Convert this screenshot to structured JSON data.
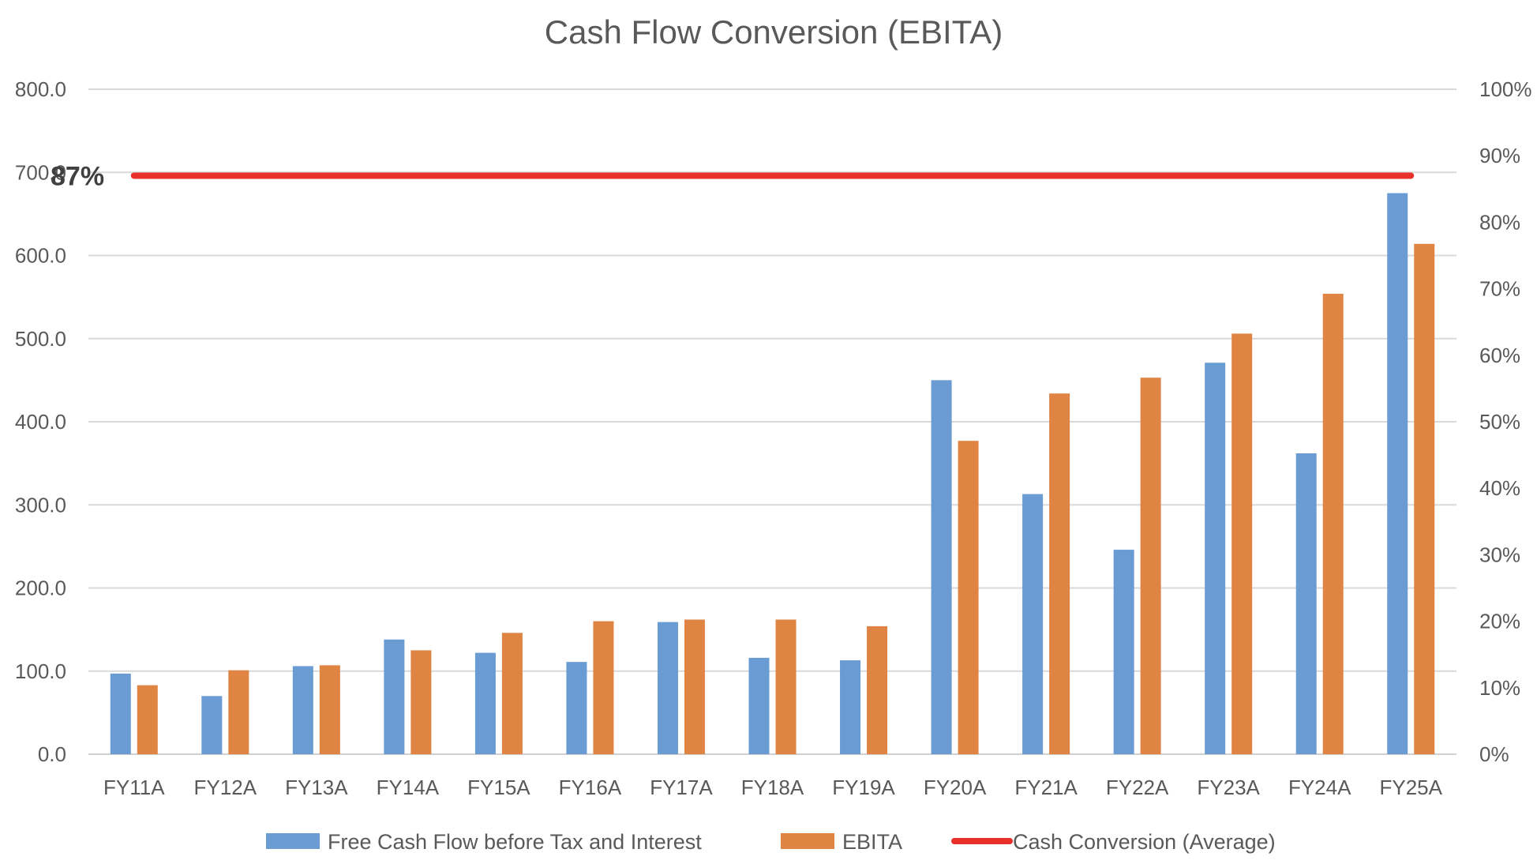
{
  "chart_data": {
    "type": "bar",
    "title": "Cash Flow Conversion (EBITA)",
    "categories": [
      "FY11A",
      "FY12A",
      "FY13A",
      "FY14A",
      "FY15A",
      "FY16A",
      "FY17A",
      "FY18A",
      "FY19A",
      "FY20A",
      "FY21A",
      "FY22A",
      "FY23A",
      "FY24A",
      "FY25A"
    ],
    "series": [
      {
        "name": "Free Cash Flow before Tax and Interest",
        "color": "#6A9BD3",
        "values": [
          97,
          70,
          106,
          138,
          122,
          111,
          159,
          116,
          113,
          450,
          313,
          246,
          471,
          362,
          675
        ]
      },
      {
        "name": "EBITA",
        "color": "#E08444",
        "values": [
          83,
          101,
          107,
          125,
          146,
          160,
          162,
          162,
          154,
          377,
          434,
          453,
          506,
          554,
          614
        ]
      }
    ],
    "line": {
      "name": "Cash Conversion (Average)",
      "color": "#E8312A",
      "value": 0.87,
      "axis": "right",
      "label": "87%"
    },
    "y_left": {
      "min": 0,
      "max": 800,
      "ticks": [
        "0.0",
        "100.0",
        "200.0",
        "300.0",
        "400.0",
        "500.0",
        "600.0",
        "700.0",
        "800.0"
      ]
    },
    "y_right": {
      "min": 0,
      "max": 1,
      "ticks": [
        "0%",
        "10%",
        "20%",
        "30%",
        "40%",
        "50%",
        "60%",
        "70%",
        "80%",
        "90%",
        "100%"
      ]
    },
    "grid": true,
    "legend": "bottom"
  }
}
